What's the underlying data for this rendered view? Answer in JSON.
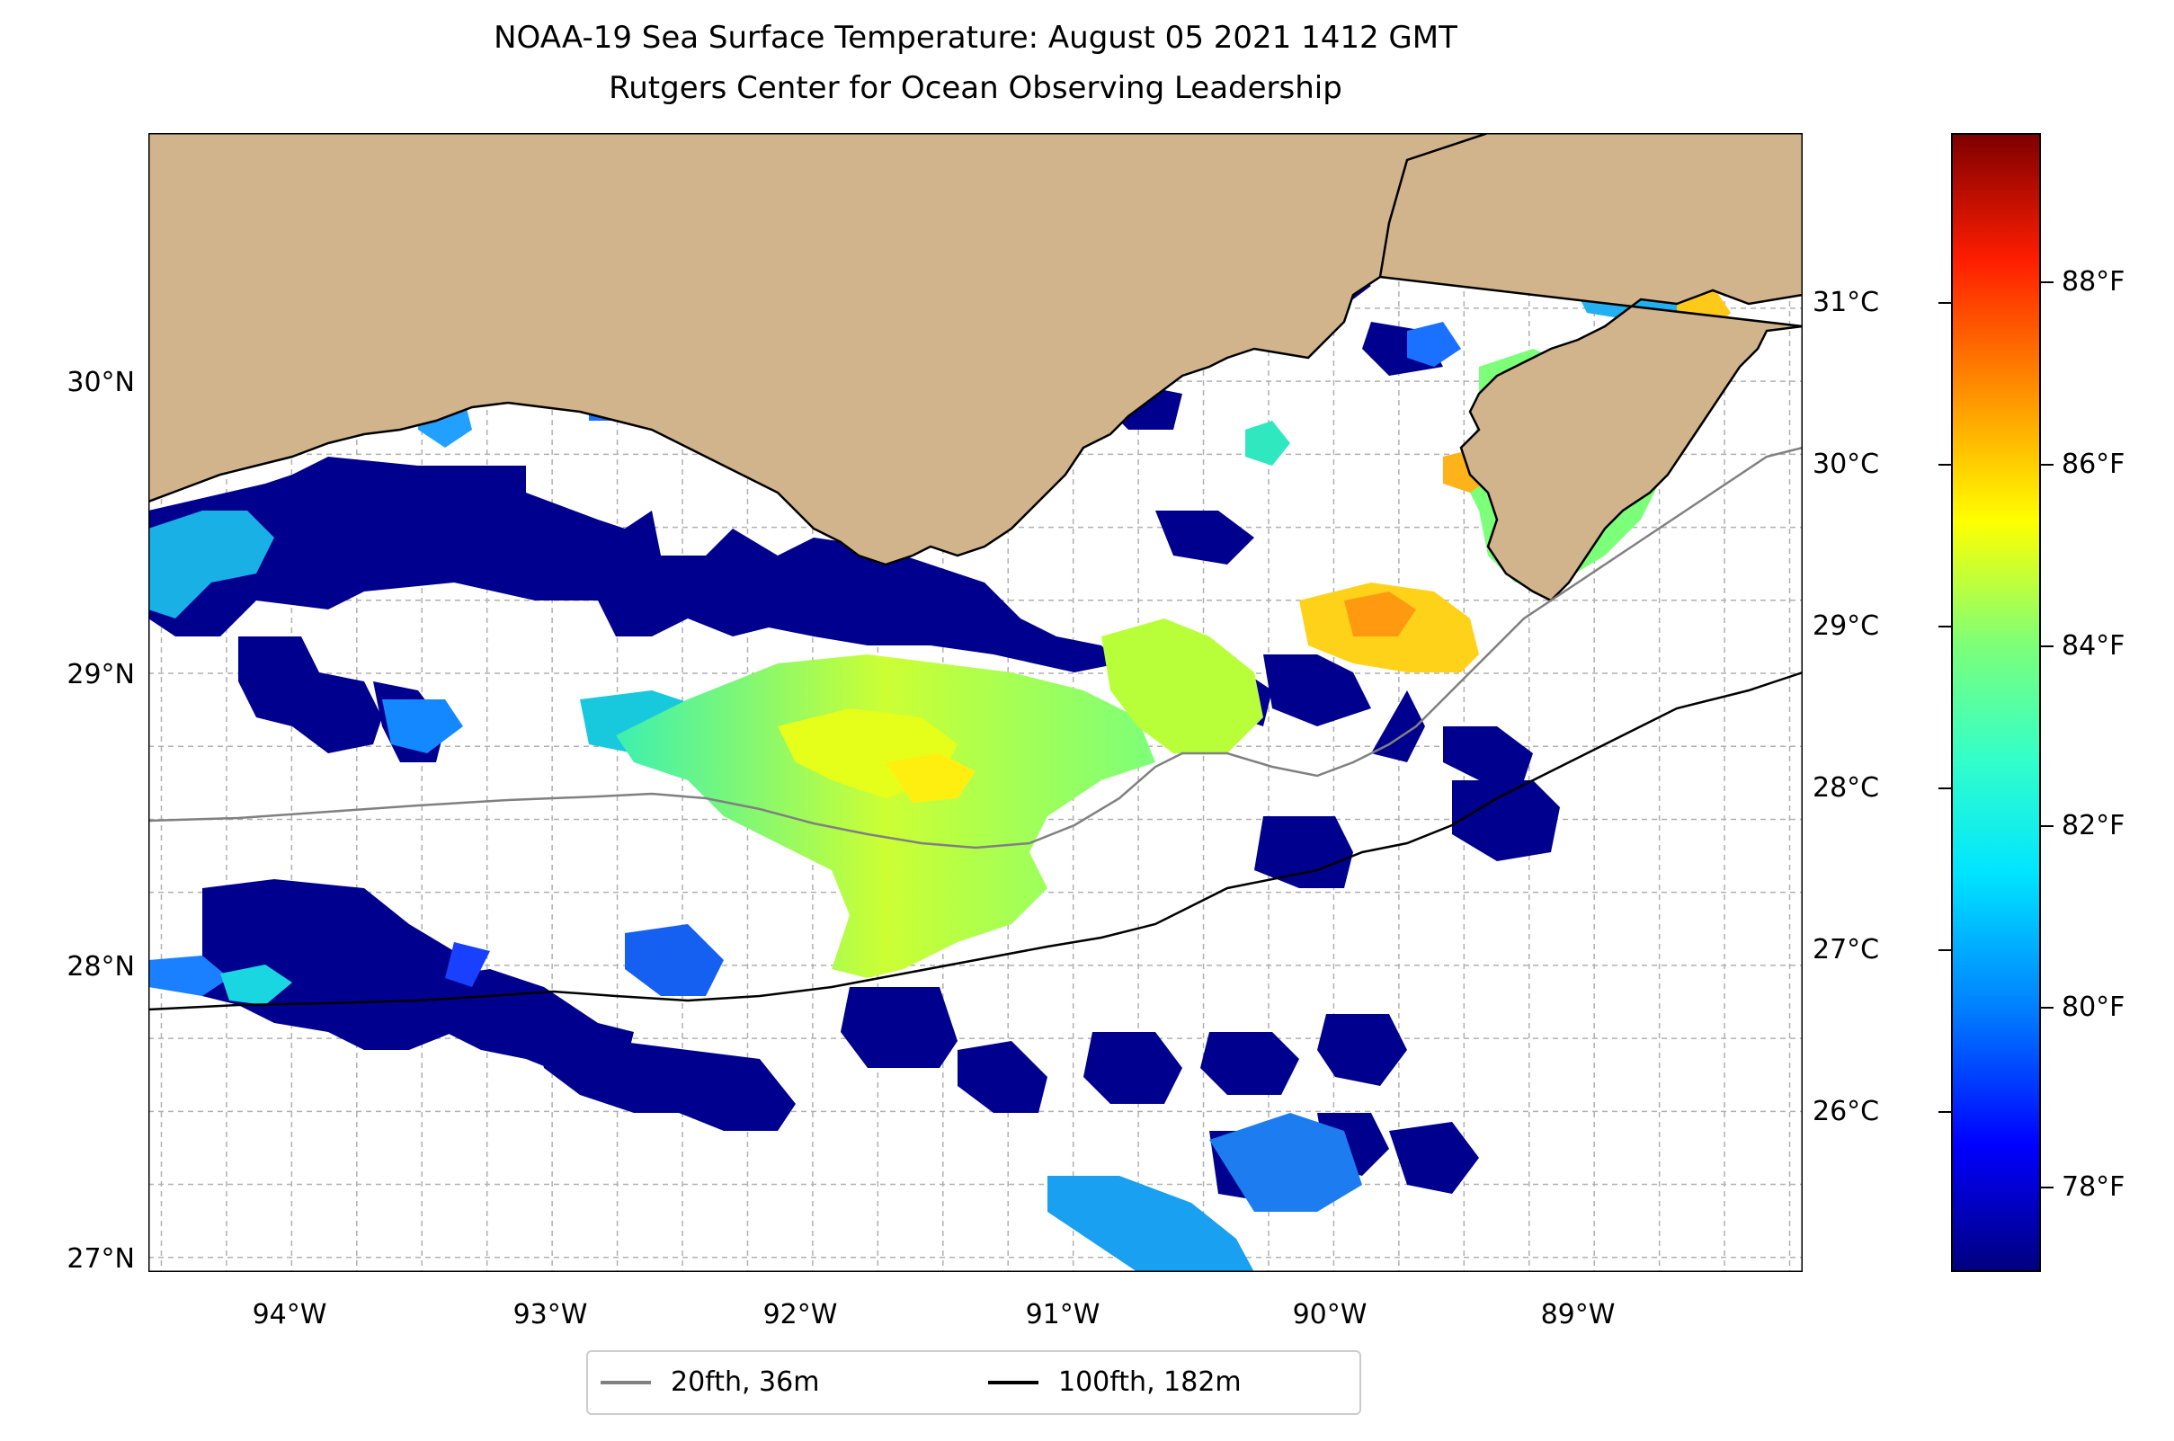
{
  "title": {
    "line1": "NOAA-19 Sea Surface Temperature: August 05 2021 1412 GMT",
    "line2": "Rutgers Center for Ocean Observing Leadership"
  },
  "map": {
    "land_color": "#D2B48C",
    "ocean_color": "#ffffff",
    "lat_range": [
      26.95,
      30.85
    ],
    "lon_range": [
      -94.55,
      -88.2
    ],
    "lat_ticks": [
      {
        "value": 27,
        "label": "27°N"
      },
      {
        "value": 28,
        "label": "28°N"
      },
      {
        "value": 29,
        "label": "29°N"
      },
      {
        "value": 30,
        "label": "30°N"
      }
    ],
    "lon_ticks": [
      {
        "value": -94,
        "label": "94°W"
      },
      {
        "value": -93,
        "label": "93°W"
      },
      {
        "value": -92,
        "label": "92°W"
      },
      {
        "value": -91,
        "label": "91°W"
      },
      {
        "value": -90,
        "label": "90°W"
      },
      {
        "value": -89,
        "label": "89°W"
      }
    ]
  },
  "colorbar": {
    "range_f": [
      77,
      90
    ],
    "celsius_ticks": [
      {
        "value": 26,
        "label": "26°C"
      },
      {
        "value": 27,
        "label": "27°C"
      },
      {
        "value": 28,
        "label": "28°C"
      },
      {
        "value": 29,
        "label": "29°C"
      },
      {
        "value": 30,
        "label": "30°C"
      },
      {
        "value": 31,
        "label": "31°C"
      }
    ],
    "fahrenheit_ticks": [
      {
        "value": 78,
        "label": "78°F"
      },
      {
        "value": 80,
        "label": "80°F"
      },
      {
        "value": 82,
        "label": "82°F"
      },
      {
        "value": 84,
        "label": "84°F"
      },
      {
        "value": 86,
        "label": "86°F"
      },
      {
        "value": 88,
        "label": "88°F"
      }
    ]
  },
  "legend": {
    "items": [
      {
        "label": "20fth, 36m",
        "color": "#808080"
      },
      {
        "label": "100fth, 182m",
        "color": "#000000"
      }
    ]
  }
}
